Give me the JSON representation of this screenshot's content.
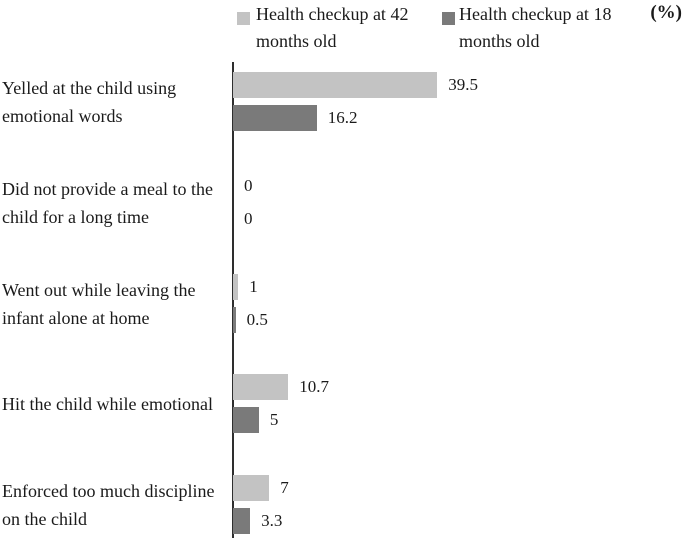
{
  "unit_label": "(%)",
  "legend": [
    {
      "label": "Health checkup at 42\nmonths old",
      "color": "#c3c3c3"
    },
    {
      "label": "Health checkup at 18\nmonths old",
      "color": "#7a7a7a"
    }
  ],
  "chart_data": {
    "type": "bar",
    "orientation": "horizontal",
    "title": "",
    "xlabel": "(%)",
    "ylabel": "",
    "xlim": [
      0,
      87
    ],
    "grid": false,
    "legend_position": "top",
    "categories": [
      "Yelled at the child using\nemotional words",
      "Did not provide a meal to the\nchild for a long time",
      "Went out while leaving the\ninfant alone at home",
      "Hit the child while emotional",
      "Enforced too much discipline\non the child"
    ],
    "series": [
      {
        "name": "Health checkup at 42 months old",
        "color": "#c3c3c3",
        "values": [
          39.5,
          0,
          1,
          10.7,
          7
        ]
      },
      {
        "name": "Health checkup at 18 months old",
        "color": "#7a7a7a",
        "values": [
          16.2,
          0,
          0.5,
          5,
          3.3
        ]
      }
    ]
  }
}
